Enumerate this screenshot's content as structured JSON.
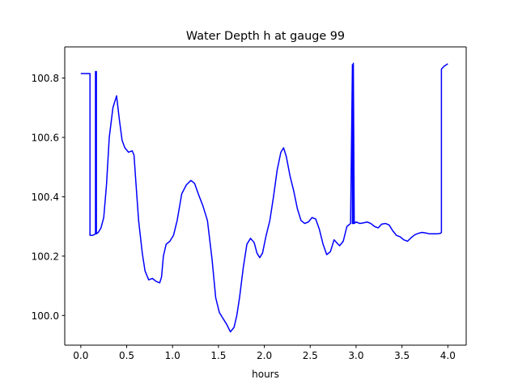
{
  "chart_data": {
    "type": "line",
    "title": "Water Depth h at gauge 99",
    "xlabel": "hours",
    "ylabel": "",
    "xlim": [
      -0.175,
      4.2
    ],
    "ylim": [
      99.9,
      100.905
    ],
    "xticks": [
      0.0,
      0.5,
      1.0,
      1.5,
      2.0,
      2.5,
      3.0,
      3.5,
      4.0
    ],
    "xtick_labels": [
      "0.0",
      "0.5",
      "1.0",
      "1.5",
      "2.0",
      "2.5",
      "3.0",
      "3.5",
      "4.0"
    ],
    "yticks": [
      100.0,
      100.2,
      100.4,
      100.6,
      100.8
    ],
    "ytick_labels": [
      "100.0",
      "100.2",
      "100.4",
      "100.6",
      "100.8"
    ],
    "grid": false,
    "legend": "none",
    "series": [
      {
        "color": "#0000ff",
        "x": [
          0.0,
          0.05,
          0.1,
          0.1,
          0.13,
          0.16,
          0.16,
          0.17,
          0.17,
          0.19,
          0.22,
          0.25,
          0.28,
          0.31,
          0.35,
          0.39,
          0.42,
          0.45,
          0.48,
          0.52,
          0.56,
          0.58,
          0.6,
          0.63,
          0.67,
          0.7,
          0.74,
          0.78,
          0.82,
          0.86,
          0.88,
          0.9,
          0.93,
          0.97,
          1.01,
          1.05,
          1.1,
          1.15,
          1.2,
          1.24,
          1.28,
          1.33,
          1.38,
          1.43,
          1.47,
          1.51,
          1.55,
          1.59,
          1.63,
          1.67,
          1.7,
          1.73,
          1.77,
          1.81,
          1.85,
          1.89,
          1.92,
          1.95,
          1.98,
          2.02,
          2.06,
          2.1,
          2.14,
          2.18,
          2.21,
          2.24,
          2.28,
          2.32,
          2.36,
          2.4,
          2.44,
          2.48,
          2.52,
          2.56,
          2.6,
          2.64,
          2.68,
          2.72,
          2.76,
          2.79,
          2.82,
          2.86,
          2.9,
          2.94,
          2.96,
          2.96,
          2.97,
          2.97,
          2.98,
          3.0,
          3.04,
          3.08,
          3.12,
          3.16,
          3.2,
          3.24,
          3.28,
          3.32,
          3.36,
          3.4,
          3.44,
          3.48,
          3.52,
          3.56,
          3.6,
          3.64,
          3.68,
          3.72,
          3.76,
          3.8,
          3.84,
          3.88,
          3.92,
          3.93,
          3.93,
          3.96,
          4.0
        ],
        "values": [
          100.815,
          100.815,
          100.815,
          100.27,
          100.27,
          100.275,
          100.822,
          100.822,
          100.275,
          100.28,
          100.295,
          100.33,
          100.44,
          100.6,
          100.7,
          100.74,
          100.66,
          100.59,
          100.565,
          100.55,
          100.555,
          100.54,
          100.45,
          100.32,
          100.21,
          100.15,
          100.12,
          100.125,
          100.115,
          100.11,
          100.13,
          100.2,
          100.24,
          100.25,
          100.27,
          100.32,
          100.41,
          100.44,
          100.455,
          100.445,
          100.41,
          100.37,
          100.32,
          100.19,
          100.06,
          100.01,
          99.99,
          99.97,
          99.945,
          99.96,
          100.0,
          100.06,
          100.16,
          100.24,
          100.26,
          100.245,
          100.21,
          100.195,
          100.21,
          100.27,
          100.32,
          100.4,
          100.49,
          100.55,
          100.565,
          100.535,
          100.47,
          100.42,
          100.36,
          100.32,
          100.31,
          100.315,
          100.33,
          100.325,
          100.29,
          100.24,
          100.205,
          100.215,
          100.255,
          100.245,
          100.235,
          100.25,
          100.3,
          100.31,
          100.845,
          100.31,
          100.31,
          100.85,
          100.31,
          100.315,
          100.31,
          100.312,
          100.315,
          100.31,
          100.3,
          100.295,
          100.308,
          100.31,
          100.305,
          100.285,
          100.27,
          100.265,
          100.255,
          100.25,
          100.262,
          100.272,
          100.277,
          100.28,
          100.278,
          100.275,
          100.275,
          100.275,
          100.277,
          100.28,
          100.83,
          100.84,
          100.848
        ]
      }
    ]
  }
}
